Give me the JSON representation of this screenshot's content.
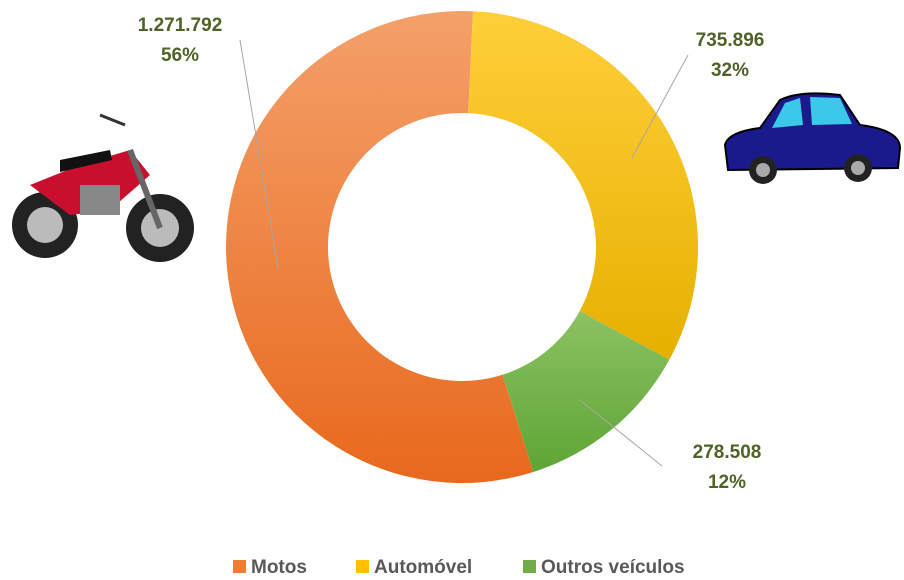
{
  "chart_data": {
    "type": "donut",
    "categories": [
      "Motos",
      "Automóvel",
      "Outros veículos"
    ],
    "series": [
      {
        "values": [
          1271792,
          735896,
          278508
        ],
        "value_labels": [
          "1.271.792",
          "735.896",
          "278.508"
        ],
        "percent_labels": [
          "56%",
          "32%",
          "12%"
        ],
        "colors": [
          "#ed7d31",
          "#ffc000",
          "#70ad47"
        ]
      }
    ],
    "legend": "bottom"
  }
}
